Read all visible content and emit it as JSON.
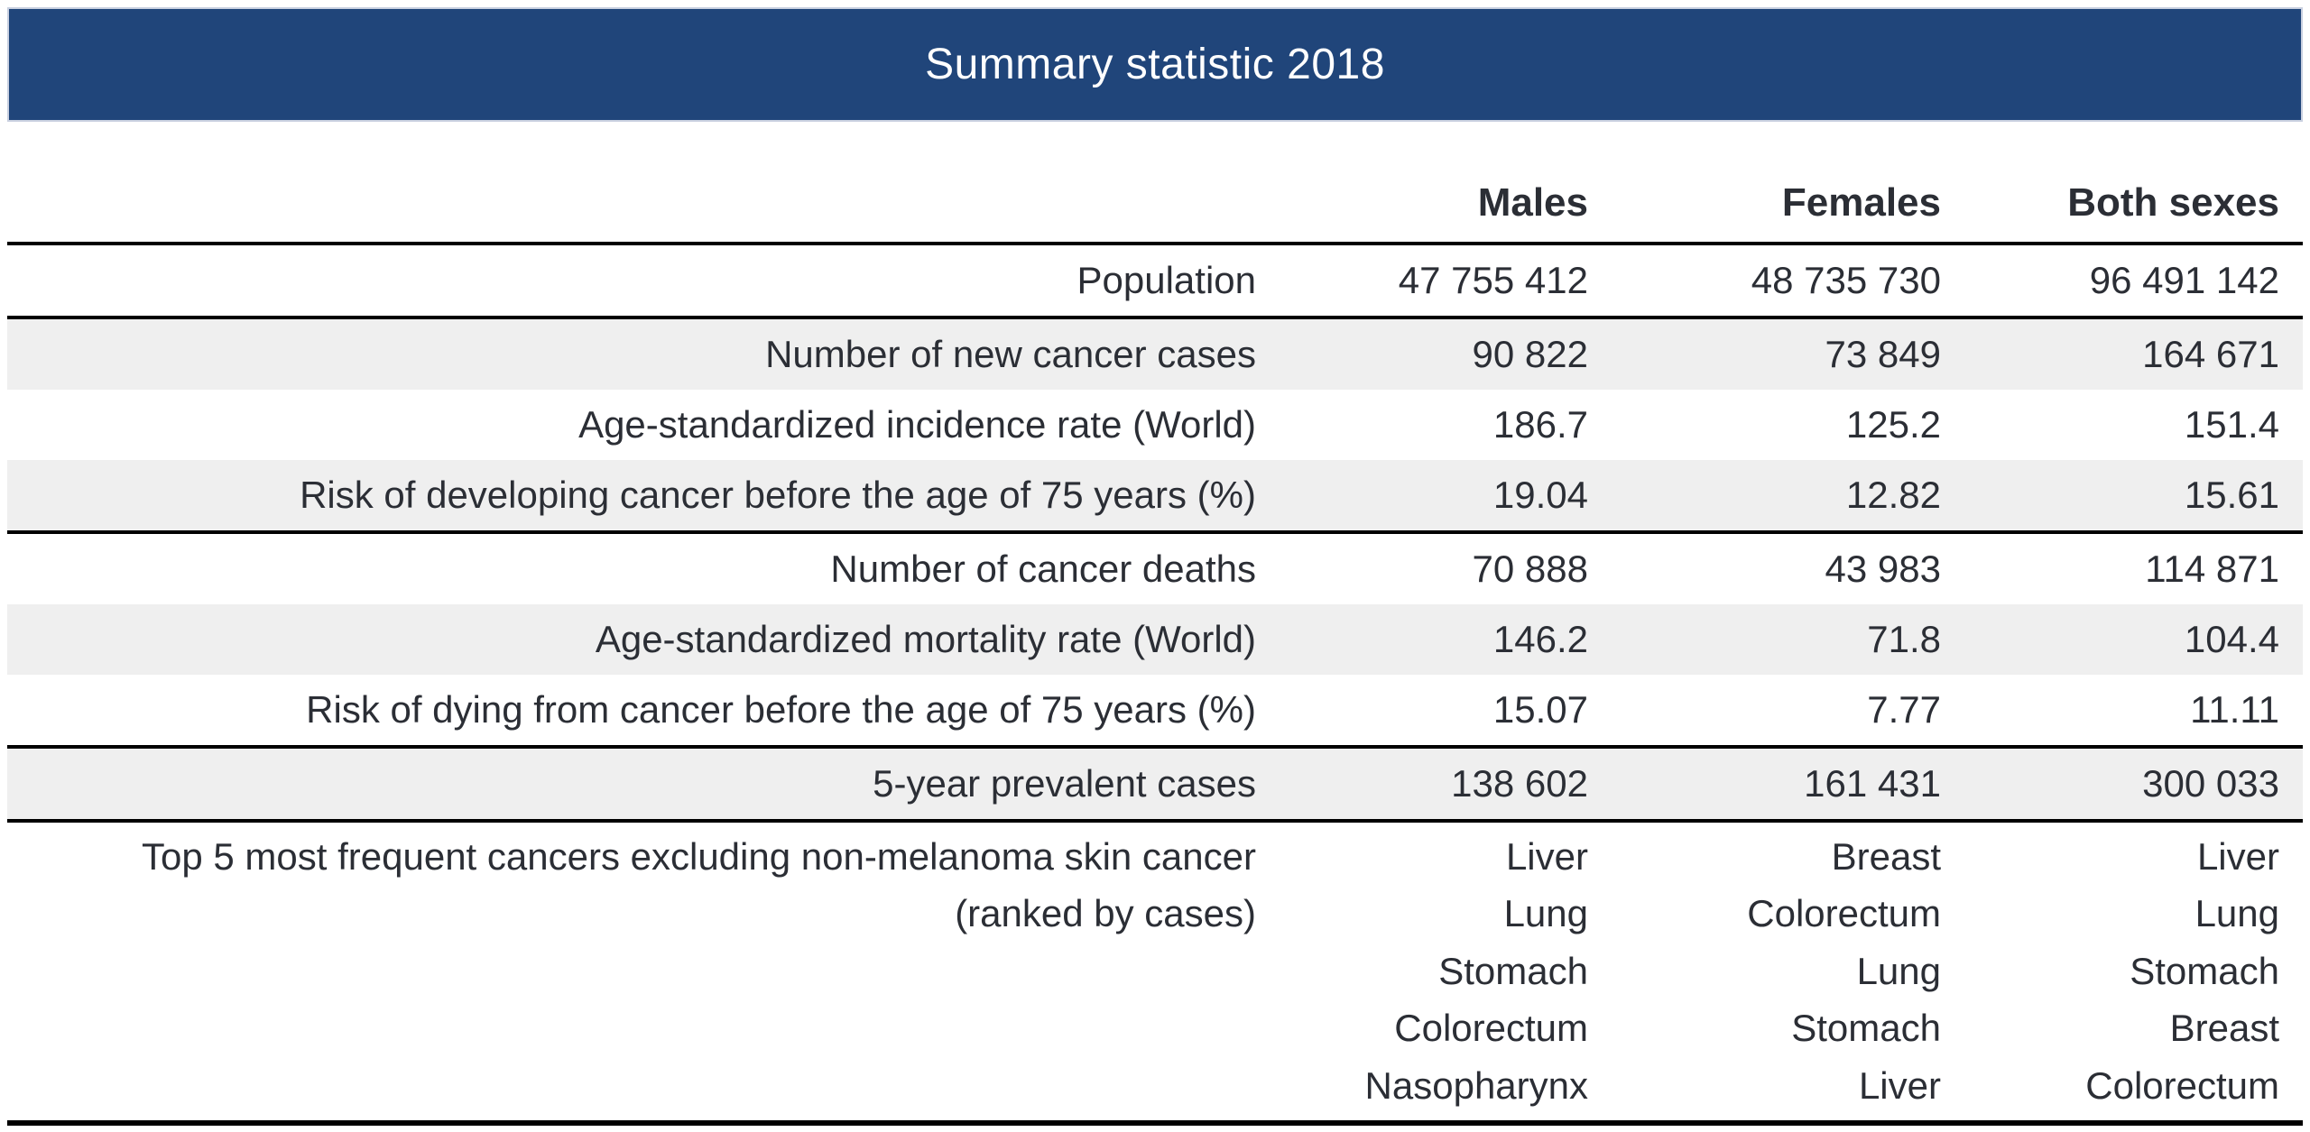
{
  "banner": {
    "title": "Summary statistic 2018"
  },
  "colors": {
    "banner_background": "#20457a",
    "banner_text": "#ffffff",
    "row_alternate_background": "#efefef",
    "text": "#2b2e35",
    "rule_line": "#000000"
  },
  "chart_data": {
    "type": "table",
    "title": "Summary statistic 2018",
    "column_headers": [
      "Males",
      "Females",
      "Both sexes"
    ],
    "rows": [
      {
        "label": "Population",
        "values": [
          "47 755 412",
          "48 735 730",
          "96 491 142"
        ]
      },
      {
        "label": "Number of new cancer cases",
        "values": [
          "90 822",
          "73 849",
          "164 671"
        ]
      },
      {
        "label": "Age-standardized incidence rate (World)",
        "values": [
          "186.7",
          "125.2",
          "151.4"
        ]
      },
      {
        "label": "Risk of developing cancer before the age of 75 years (%)",
        "values": [
          "19.04",
          "12.82",
          "15.61"
        ]
      },
      {
        "label": "Number of cancer deaths",
        "values": [
          "70 888",
          "43 983",
          "114 871"
        ]
      },
      {
        "label": "Age-standardized mortality rate (World)",
        "values": [
          "146.2",
          "71.8",
          "104.4"
        ]
      },
      {
        "label": "Risk of dying from cancer before the age of 75 years (%)",
        "values": [
          "15.07",
          "7.77",
          "11.11"
        ]
      },
      {
        "label": "5-year prevalent cases",
        "values": [
          "138 602",
          "161 431",
          "300 033"
        ]
      }
    ],
    "top5_row": {
      "label_line1": "Top 5 most frequent cancers excluding non-melanoma skin cancer",
      "label_line2": "(ranked by cases)",
      "males": [
        "Liver",
        "Lung",
        "Stomach",
        "Colorectum",
        "Nasopharynx"
      ],
      "females": [
        "Breast",
        "Colorectum",
        "Lung",
        "Stomach",
        "Liver"
      ],
      "both_sexes": [
        "Liver",
        "Lung",
        "Stomach",
        "Breast",
        "Colorectum"
      ]
    }
  }
}
